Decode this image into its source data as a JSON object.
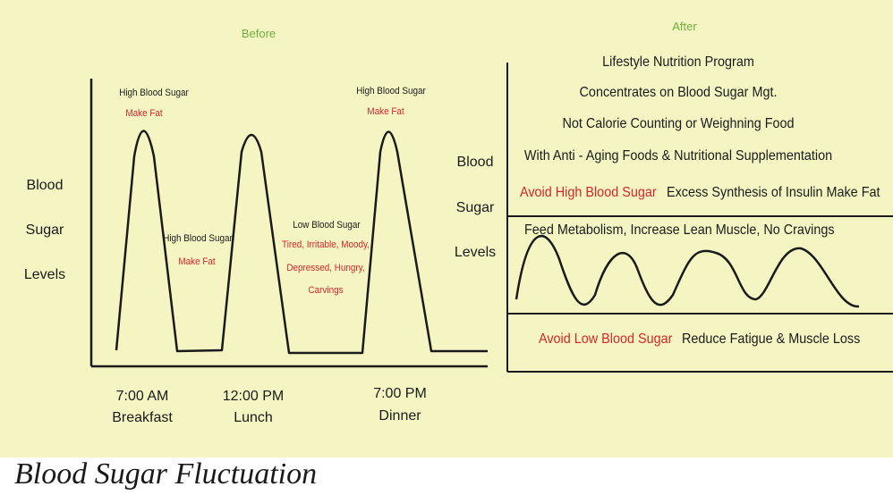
{
  "before": {
    "heading": "Before",
    "y_label": [
      "Blood",
      "Sugar",
      "Levels"
    ],
    "peak1": {
      "title": "High Blood Sugar",
      "effect": "Make Fat"
    },
    "peak2": {
      "title": "High Blood Sugar",
      "effect": "Make Fat"
    },
    "peak3": {
      "title": "High Blood Sugar",
      "effect": "Make Fat"
    },
    "low": {
      "title": "Low Blood Sugar",
      "effects": [
        "Tired, Irritable, Moody,",
        "Depressed, Hungry,",
        "Carvings"
      ]
    },
    "times": [
      {
        "time": "7:00 AM",
        "meal": "Breakfast"
      },
      {
        "time": "12:00 PM",
        "meal": "Lunch"
      },
      {
        "time": "7:00 PM",
        "meal": "Dinner"
      }
    ]
  },
  "after": {
    "heading": "After",
    "y_label": [
      "Blood",
      "Sugar",
      "Levels"
    ],
    "program_lines": [
      "Lifestyle Nutrition Program",
      "Concentrates on Blood Sugar Mgt.",
      "Not Calorie Counting or Weighning Food",
      "With Anti - Aging Foods & Nutritional Supplementation"
    ],
    "high_label": "Avoid High Blood Sugar",
    "high_note": "Excess Synthesis of Insulin Make Fat",
    "metabolism_note": "Feed Metabolism,  Increase Lean Muscle, No Cravings",
    "low_label": "Avoid Low Blood Sugar",
    "low_note": "Reduce Fatigue & Muscle Loss"
  },
  "caption": "Blood Sugar Fluctuation",
  "colors": {
    "background": "#f5f5c4",
    "heading": "#6fae3e",
    "alert": "#d7252a",
    "ink": "#1a1a1a"
  }
}
